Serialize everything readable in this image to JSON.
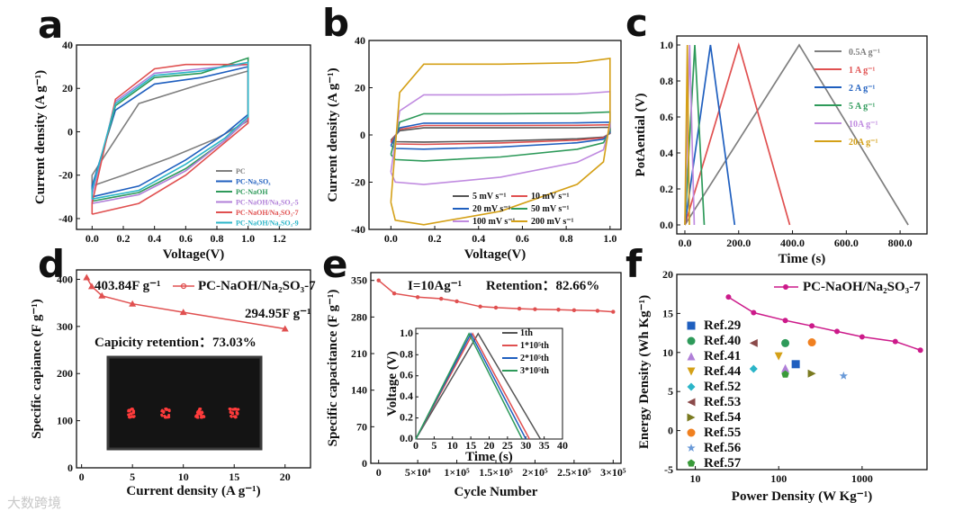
{
  "watermark": "大数跨境",
  "chart_data": [
    {
      "panel": "a",
      "type": "line",
      "xlabel": "Voltage(V)",
      "ylabel": "Current density (A g⁻¹)",
      "xlim": [
        -0.1,
        1.4
      ],
      "ylim": [
        -45,
        40
      ],
      "xticks": [
        0.0,
        0.2,
        0.4,
        0.6,
        0.8,
        1.0,
        1.2
      ],
      "yticks": [
        -40,
        -20,
        0,
        20,
        40
      ],
      "legend_position": "bottom-right",
      "series": [
        {
          "name": "PC",
          "color": "#7f7f7f",
          "lower": [
            [
              0,
              -25
            ],
            [
              0.2,
              -20
            ],
            [
              0.5,
              -12
            ],
            [
              0.8,
              -3
            ],
            [
              1.0,
              5
            ]
          ],
          "upper": [
            [
              0,
              -20
            ],
            [
              0.3,
              13
            ],
            [
              0.7,
              22
            ],
            [
              1.0,
              28
            ]
          ]
        },
        {
          "name": "PC-Na₂SO₃",
          "color": "#1f5fbf",
          "lower": [
            [
              0,
              -30
            ],
            [
              0.3,
              -25
            ],
            [
              0.6,
              -13
            ],
            [
              0.85,
              -1
            ],
            [
              1.0,
              8
            ]
          ],
          "upper": [
            [
              0,
              -25
            ],
            [
              0.15,
              10
            ],
            [
              0.4,
              22
            ],
            [
              0.7,
              25
            ],
            [
              1.0,
              30
            ]
          ]
        },
        {
          "name": "PC-NaOH",
          "color": "#2e9a5a",
          "lower": [
            [
              0,
              -32
            ],
            [
              0.3,
              -28
            ],
            [
              0.6,
              -17
            ],
            [
              0.85,
              -4
            ],
            [
              1.0,
              6
            ]
          ],
          "upper": [
            [
              0,
              -28
            ],
            [
              0.15,
              12
            ],
            [
              0.4,
              25
            ],
            [
              0.7,
              27
            ],
            [
              1.0,
              34
            ]
          ]
        },
        {
          "name": "PC-NaOH/Na₂SO₃-5",
          "color": "#b07fd8",
          "lower": [
            [
              0,
              -33
            ],
            [
              0.3,
              -29
            ],
            [
              0.6,
              -18
            ],
            [
              0.85,
              -4
            ],
            [
              1.0,
              6
            ]
          ],
          "upper": [
            [
              0,
              -29
            ],
            [
              0.15,
              14
            ],
            [
              0.4,
              27
            ],
            [
              0.7,
              29
            ],
            [
              1.0,
              31
            ]
          ]
        },
        {
          "name": "PC-NaOH/Na₂SO₃-7",
          "color": "#e05050",
          "lower": [
            [
              0,
              -38
            ],
            [
              0.3,
              -33
            ],
            [
              0.6,
              -20
            ],
            [
              0.85,
              -5
            ],
            [
              1.0,
              4
            ]
          ],
          "upper": [
            [
              0,
              -33
            ],
            [
              0.15,
              15
            ],
            [
              0.4,
              29
            ],
            [
              0.6,
              31
            ],
            [
              1.0,
              31
            ]
          ]
        },
        {
          "name": "PC-NaOH/Na₂SO₃-9",
          "color": "#2bb5c8",
          "lower": [
            [
              0,
              -31
            ],
            [
              0.3,
              -27
            ],
            [
              0.6,
              -15
            ],
            [
              0.85,
              -3
            ],
            [
              1.0,
              7
            ]
          ],
          "upper": [
            [
              0,
              -27
            ],
            [
              0.15,
              13
            ],
            [
              0.4,
              26
            ],
            [
              0.7,
              28
            ],
            [
              1.0,
              32
            ]
          ]
        }
      ]
    },
    {
      "panel": "b",
      "type": "line",
      "xlabel": "Voltage(V)",
      "ylabel": "Current density (A g⁻¹)",
      "xlim": [
        -0.1,
        1.05
      ],
      "ylim": [
        -40,
        40
      ],
      "xticks": [
        0.0,
        0.2,
        0.4,
        0.6,
        0.8,
        1.0
      ],
      "yticks": [
        -40,
        -20,
        0,
        20,
        40
      ],
      "legend_position": "bottom-right",
      "series": [
        {
          "name": "5 mV s⁻¹",
          "color": "#555555",
          "upper": 3,
          "lower": -3
        },
        {
          "name": "10 mV s⁻¹",
          "color": "#e05050",
          "upper": 4,
          "lower": -4
        },
        {
          "name": "20 mV s⁻¹",
          "color": "#1f5fbf",
          "upper": 5,
          "lower": -6
        },
        {
          "name": "50 mV s⁻¹",
          "color": "#2e9a5a",
          "upper": 9,
          "lower": -11
        },
        {
          "name": "100 mV s⁻¹",
          "color": "#c08be0",
          "upper": 17,
          "lower": -21
        },
        {
          "name": "200 mV s⁻¹",
          "color": "#d4a017",
          "upper": 30,
          "lower": -38
        }
      ]
    },
    {
      "panel": "c",
      "type": "line",
      "xlabel": "Time (s)",
      "ylabel": "PotAential (V)",
      "xlim": [
        -30,
        900
      ],
      "ylim": [
        -0.05,
        1.05
      ],
      "xticks": [
        0,
        200,
        400,
        600,
        800
      ],
      "yticks": [
        0.0,
        0.2,
        0.4,
        0.6,
        0.8,
        1.0
      ],
      "legend_position": "top-right",
      "series": [
        {
          "name": "0.5A g⁻¹",
          "color": "#7f7f7f",
          "x": [
            0,
            425,
            830
          ],
          "y": [
            0,
            1,
            0
          ]
        },
        {
          "name": "1  A g⁻¹",
          "color": "#e05050",
          "x": [
            0,
            200,
            390
          ],
          "y": [
            0,
            1,
            0
          ]
        },
        {
          "name": "2  A g⁻¹",
          "color": "#1f5fbf",
          "x": [
            0,
            95,
            185
          ],
          "y": [
            0,
            1,
            0
          ]
        },
        {
          "name": "5  A g⁻¹",
          "color": "#2e9a5a",
          "x": [
            0,
            37,
            72
          ],
          "y": [
            0,
            1,
            0
          ]
        },
        {
          "name": "10A g⁻¹",
          "color": "#c08be0",
          "x": [
            0,
            18,
            35
          ],
          "y": [
            0,
            1,
            0
          ]
        },
        {
          "name": "20A g⁻¹",
          "color": "#d4a017",
          "x": [
            0,
            9,
            17
          ],
          "y": [
            0,
            1,
            0
          ]
        }
      ]
    },
    {
      "panel": "d",
      "type": "line",
      "xlabel": "Current density (A g⁻¹)",
      "ylabel": "Specific capiance (F g⁻¹)",
      "xlim": [
        -0.5,
        22.5
      ],
      "ylim": [
        0,
        420
      ],
      "xticks": [
        0,
        5,
        10,
        15,
        20
      ],
      "yticks": [
        0,
        100,
        200,
        300,
        400
      ],
      "legend_position": "top-right",
      "annotations": [
        "403.84F g⁻¹",
        "294.95F g⁻¹",
        "Capicity retention：73.03%"
      ],
      "inset_text": "SCAU",
      "series": [
        {
          "name": "PC-NaOH/Na₂SO₃-7",
          "color": "#e05050",
          "x": [
            0.5,
            1,
            2,
            5,
            10,
            20
          ],
          "y": [
            403.84,
            385,
            365,
            348,
            330,
            294.95
          ]
        }
      ]
    },
    {
      "panel": "e",
      "type": "line",
      "xlabel": "Cycle Number",
      "ylabel": "Specific capacitance (F g⁻¹)",
      "xlim": [
        -1,
        31
      ],
      "ylim": [
        0,
        365
      ],
      "xtick_labels": [
        "0",
        "5×10⁴",
        "1×10⁵",
        "1.5×10⁵",
        "2×10⁵",
        "2.5×10⁵",
        "3×10⁵"
      ],
      "xtick_values": [
        0,
        5,
        10,
        15,
        20,
        25,
        30
      ],
      "yticks": [
        0,
        70,
        140,
        210,
        280,
        350
      ],
      "annotations": [
        "I=10Ag⁻¹",
        "Retention：82.66%"
      ],
      "series": [
        {
          "name": "capacitance",
          "color": "#e05050",
          "x": [
            0,
            2,
            5,
            8,
            10,
            13,
            15,
            18,
            20,
            23,
            25,
            28,
            30
          ],
          "y": [
            350,
            325,
            318,
            315,
            310,
            300,
            298,
            296,
            295,
            294,
            293,
            292,
            290
          ]
        }
      ],
      "inset": {
        "xlabel": "Time (s)",
        "ylabel": "Voltage (V)",
        "xlim": [
          0,
          40
        ],
        "ylim": [
          0,
          1.05
        ],
        "xticks": [
          0,
          5,
          10,
          15,
          20,
          25,
          30,
          35,
          40
        ],
        "yticks": [
          0.0,
          0.2,
          0.4,
          0.6,
          0.8,
          1.0
        ],
        "series": [
          {
            "name": "1th",
            "color": "#555555",
            "x": [
              0,
              17,
              34
            ],
            "y": [
              0,
              1,
              0
            ]
          },
          {
            "name": "1*10⁵th",
            "color": "#e05050",
            "x": [
              0,
              15.5,
              31
            ],
            "y": [
              0,
              1,
              0
            ]
          },
          {
            "name": "2*10⁵th",
            "color": "#1f5fbf",
            "x": [
              0,
              15,
              30
            ],
            "y": [
              0,
              1,
              0
            ]
          },
          {
            "name": "3*10⁵th",
            "color": "#2e9a5a",
            "x": [
              0,
              14.5,
              29
            ],
            "y": [
              0,
              1,
              0
            ]
          }
        ]
      }
    },
    {
      "panel": "f",
      "type": "scatter",
      "xlabel": "Power Density (W Kg⁻¹)",
      "ylabel": "Energy Density (Wh Kg⁻¹)",
      "xscale": "log",
      "xlim": [
        6,
        6000
      ],
      "ylim": [
        -5,
        20
      ],
      "xtick_labels": [
        "10",
        "100",
        "1000"
      ],
      "xtick_values": [
        10,
        100,
        1000
      ],
      "yticks": [
        -5,
        0,
        5,
        10,
        15,
        20
      ],
      "legend_position": "top-right",
      "line_series": {
        "name": "PC-NaOH/Na₂SO₃-7",
        "color": "#cc1a8a",
        "x": [
          25,
          50,
          120,
          250,
          500,
          1000,
          2500,
          5000
        ],
        "y": [
          17.1,
          15.1,
          14.1,
          13.4,
          12.7,
          12.0,
          11.4,
          10.3
        ]
      },
      "refs": [
        {
          "name": "Ref.29",
          "color": "#1f5fbf",
          "marker": "square",
          "x": 160,
          "y": 8.5
        },
        {
          "name": "Ref.40",
          "color": "#2e9a5a",
          "marker": "circle",
          "x": 120,
          "y": 11.2
        },
        {
          "name": "Ref.41",
          "color": "#b07fd8",
          "marker": "triangle-up",
          "x": 120,
          "y": 8.0
        },
        {
          "name": "Ref.44",
          "color": "#d4a017",
          "marker": "triangle-down",
          "x": 100,
          "y": 9.5
        },
        {
          "name": "Ref.52",
          "color": "#2bb5c8",
          "marker": "diamond",
          "x": 50,
          "y": 7.9
        },
        {
          "name": "Ref.53",
          "color": "#8b4a4a",
          "marker": "triangle-left",
          "x": 50,
          "y": 11.2
        },
        {
          "name": "Ref.54",
          "color": "#7a7a20",
          "marker": "triangle-right",
          "x": 250,
          "y": 7.3
        },
        {
          "name": "Ref.55",
          "color": "#f08020",
          "marker": "circle",
          "x": 250,
          "y": 11.3
        },
        {
          "name": "Ref.56",
          "color": "#6a9ad8",
          "marker": "star",
          "x": 600,
          "y": 7.0
        },
        {
          "name": "Ref.57",
          "color": "#3a9a3a",
          "marker": "pentagon",
          "x": 120,
          "y": 7.2
        }
      ]
    }
  ]
}
